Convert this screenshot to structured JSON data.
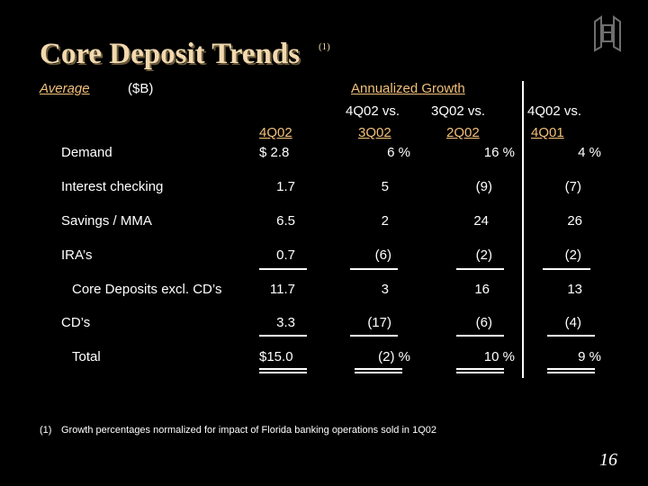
{
  "title": "Core Deposit Trends",
  "title_note": "(1)",
  "header": {
    "average": "Average",
    "unit": "($B)",
    "annualized_growth": "Annualized Growth",
    "col1_label": "4Q02",
    "col2_line1": "4Q02 vs.",
    "col2_line2": "3Q02",
    "col3_line1": "3Q02 vs.",
    "col3_line2": "2Q02",
    "col4_line1": "4Q02 vs.",
    "col4_line2": "4Q01"
  },
  "rows": [
    {
      "label": "Demand",
      "v1": "$  2.8",
      "v2": "6  %",
      "v3": "16   %",
      "v4": "4 %"
    },
    {
      "label": "Interest checking",
      "v1": "1.7",
      "v2": "5",
      "v3": "(9)",
      "v4": "(7)"
    },
    {
      "label": "Savings / MMA",
      "v1": "6.5",
      "v2": "2",
      "v3": "24",
      "v4": "26"
    },
    {
      "label": "IRA’s",
      "v1": "0.7",
      "v2": "(6)",
      "v3": "(2)",
      "v4": "(2)"
    },
    {
      "label": "Core Deposits excl. CD’s",
      "v1": "11.7",
      "v2": "3",
      "v3": "16",
      "v4": "13"
    },
    {
      "label": "CD’s",
      "v1": "3.3",
      "v2": "(17)",
      "v3": "(6)",
      "v4": "(4)"
    },
    {
      "label": "Total",
      "v1": "$15.0",
      "v2": "(2) %",
      "v3": "10   %",
      "v4": "9 %"
    }
  ],
  "footnote_marker": "(1)",
  "footnote_text": "Growth percentages normalized for impact of Florida banking operations sold in 1Q02",
  "page_number": "16",
  "colors": {
    "title": "#f2d9ae",
    "accent": "#f2c07a",
    "background": "#000000"
  }
}
